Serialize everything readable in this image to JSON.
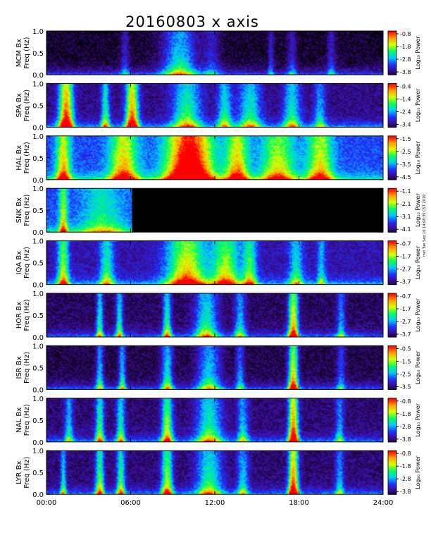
{
  "title": "20160803 x axis",
  "side_note": "mst Tue Sep 10 14:08:35 CST 2019",
  "chart_data": {
    "type": "heatmap",
    "x_ticks": [
      "00:00",
      "06:00",
      "12:00",
      "18:00",
      "24:00"
    ],
    "x_range": [
      0,
      24
    ],
    "ylim": [
      0,
      1.0
    ],
    "y_ticks": [
      "0.0",
      "0.5",
      "1.0"
    ],
    "y_label": "Freq (Hz)",
    "colorbar_label": "Log₁₀ Power",
    "colormap": [
      "#000000",
      "#3a0a8a",
      "#2030ff",
      "#00c8ff",
      "#00ff60",
      "#d8ff00",
      "#ffa000",
      "#ff0000"
    ],
    "panels": [
      {
        "station": "MCM Bx",
        "colorbar_ticks": [
          "-0.8",
          "-1.8",
          "-2.8",
          "-3.8"
        ],
        "data_start_hour": 0,
        "data_end_hour": 24,
        "base": 0.05,
        "events": [
          [
            9.5,
            1.2,
            0.45
          ],
          [
            5.6,
            0.3,
            0.2
          ],
          [
            11.8,
            0.6,
            0.2
          ],
          [
            16.0,
            0.2,
            0.2
          ],
          [
            17.5,
            0.3,
            0.2
          ],
          [
            20.3,
            0.3,
            0.2
          ]
        ]
      },
      {
        "station": "SPA Bx",
        "colorbar_ticks": [
          "-0.4",
          "-1.4",
          "-2.4",
          "-3.4"
        ],
        "data_start_hour": 0,
        "data_end_hour": 24,
        "base": 0.14,
        "events": [
          [
            1.4,
            0.5,
            0.85
          ],
          [
            6.1,
            0.45,
            0.8
          ],
          [
            4.2,
            0.3,
            0.45
          ],
          [
            10.0,
            1.0,
            0.45
          ],
          [
            12.7,
            0.5,
            0.4
          ],
          [
            14.5,
            0.8,
            0.4
          ],
          [
            17.5,
            0.6,
            0.4
          ],
          [
            19.5,
            0.4,
            0.3
          ]
        ]
      },
      {
        "station": "HAL Bx",
        "colorbar_ticks": [
          "-1.5",
          "-2.5",
          "-3.5",
          "-4.5"
        ],
        "data_start_hour": 0,
        "data_end_hour": 24,
        "base": 0.3,
        "events": [
          [
            1.2,
            0.5,
            0.55
          ],
          [
            5.5,
            1.0,
            0.55
          ],
          [
            10.2,
            1.6,
            0.95
          ],
          [
            13.6,
            0.8,
            0.55
          ],
          [
            16.5,
            1.2,
            0.45
          ],
          [
            19.5,
            0.9,
            0.5
          ]
        ]
      },
      {
        "station": "SNK Bx",
        "colorbar_ticks": [
          "-1.1",
          "-2.1",
          "-3.1",
          "-4.1"
        ],
        "data_start_hour": 0,
        "data_end_hour": 6.1,
        "base": 0.3,
        "events": [
          [
            1.2,
            0.3,
            0.45
          ],
          [
            4.0,
            1.5,
            0.25
          ]
        ]
      },
      {
        "station": "IQA Bx",
        "colorbar_ticks": [
          "-0.7",
          "-1.7",
          "-2.7",
          "-3.7"
        ],
        "data_start_hour": 0,
        "data_end_hour": 24,
        "base": 0.18,
        "events": [
          [
            1.2,
            0.4,
            0.55
          ],
          [
            4.3,
            0.5,
            0.4
          ],
          [
            10.0,
            1.4,
            0.65
          ],
          [
            12.8,
            1.0,
            0.55
          ],
          [
            14.5,
            0.5,
            0.45
          ],
          [
            17.8,
            0.5,
            0.35
          ],
          [
            19.6,
            0.3,
            0.3
          ]
        ]
      },
      {
        "station": "HOR Bx",
        "colorbar_ticks": [
          "-0.7",
          "-1.7",
          "-2.7",
          "-3.7"
        ],
        "data_start_hour": 0,
        "data_end_hour": 24,
        "base": 0.1,
        "events": [
          [
            3.8,
            0.25,
            0.45
          ],
          [
            5.2,
            0.25,
            0.45
          ],
          [
            8.6,
            0.3,
            0.5
          ],
          [
            11.4,
            0.8,
            0.45
          ],
          [
            13.8,
            0.4,
            0.35
          ],
          [
            17.6,
            0.35,
            0.75
          ],
          [
            21.0,
            0.3,
            0.3
          ]
        ]
      },
      {
        "station": "ISR Bx",
        "colorbar_ticks": [
          "-0.5",
          "-1.5",
          "-2.5",
          "-3.5"
        ],
        "data_start_hour": 0,
        "data_end_hour": 24,
        "base": 0.08,
        "events": [
          [
            3.8,
            0.25,
            0.4
          ],
          [
            5.4,
            0.25,
            0.4
          ],
          [
            8.6,
            0.4,
            0.45
          ],
          [
            11.6,
            0.8,
            0.4
          ],
          [
            13.8,
            0.3,
            0.3
          ],
          [
            17.6,
            0.35,
            0.75
          ],
          [
            21.0,
            0.3,
            0.25
          ]
        ]
      },
      {
        "station": "NAL Bx",
        "colorbar_ticks": [
          "-0.8",
          "-1.8",
          "-2.8",
          "-3.8"
        ],
        "data_start_hour": 0,
        "data_end_hour": 24,
        "base": 0.12,
        "events": [
          [
            1.6,
            0.3,
            0.35
          ],
          [
            3.8,
            0.3,
            0.5
          ],
          [
            5.3,
            0.3,
            0.45
          ],
          [
            8.6,
            0.4,
            0.6
          ],
          [
            11.6,
            0.9,
            0.45
          ],
          [
            14.0,
            0.4,
            0.35
          ],
          [
            17.6,
            0.35,
            0.85
          ],
          [
            20.9,
            0.3,
            0.3
          ]
        ]
      },
      {
        "station": "LYR Bx",
        "colorbar_ticks": [
          "-0.8",
          "-1.8",
          "-2.8",
          "-3.8"
        ],
        "data_start_hour": 0,
        "data_end_hour": 24,
        "base": 0.12,
        "events": [
          [
            1.2,
            0.2,
            0.4
          ],
          [
            3.8,
            0.3,
            0.55
          ],
          [
            5.3,
            0.3,
            0.5
          ],
          [
            8.6,
            0.4,
            0.6
          ],
          [
            11.6,
            0.9,
            0.45
          ],
          [
            14.0,
            0.4,
            0.35
          ],
          [
            17.6,
            0.35,
            0.85
          ],
          [
            20.9,
            0.3,
            0.3
          ]
        ]
      }
    ]
  }
}
